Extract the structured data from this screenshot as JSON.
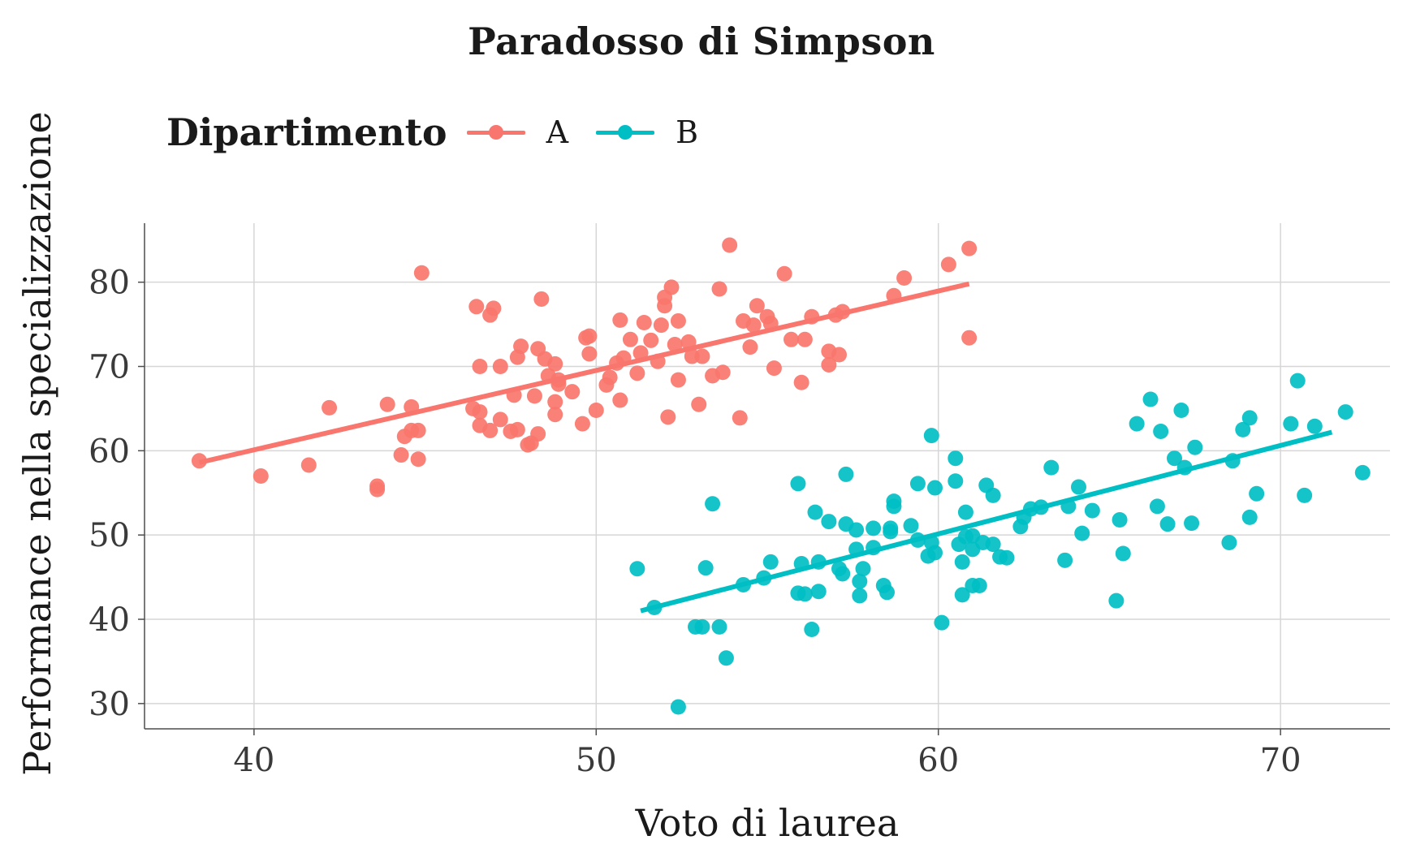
{
  "chart_data": {
    "type": "scatter",
    "title": "Paradosso di Simpson",
    "xlabel": "Voto di laurea",
    "ylabel": "Performance nella specializzazione",
    "xlim": [
      36.8,
      73.2
    ],
    "ylim": [
      27,
      87
    ],
    "xticks": [
      40,
      50,
      60,
      70
    ],
    "yticks": [
      30,
      40,
      50,
      60,
      70,
      80
    ],
    "grid": true,
    "legend": {
      "title": "Dipartimento",
      "placement": "top-left",
      "entries": [
        "A",
        "B"
      ]
    },
    "series": [
      {
        "name": "A",
        "color": "#f8766d",
        "fit_line": {
          "x": [
            38.4,
            60.9
          ],
          "y": [
            58.6,
            79.8
          ]
        },
        "points": [
          [
            38.4,
            58.8
          ],
          [
            40.2,
            57.0
          ],
          [
            41.6,
            58.3
          ],
          [
            42.2,
            65.1
          ],
          [
            43.6,
            55.8
          ],
          [
            43.6,
            55.4
          ],
          [
            43.9,
            65.5
          ],
          [
            44.3,
            59.5
          ],
          [
            44.4,
            61.7
          ],
          [
            44.6,
            62.4
          ],
          [
            44.6,
            65.2
          ],
          [
            44.8,
            62.4
          ],
          [
            44.8,
            59.0
          ],
          [
            44.9,
            81.1
          ],
          [
            46.4,
            65.0
          ],
          [
            46.5,
            77.1
          ],
          [
            46.6,
            70.0
          ],
          [
            46.6,
            63.0
          ],
          [
            46.6,
            64.6
          ],
          [
            46.9,
            62.4
          ],
          [
            46.9,
            76.1
          ],
          [
            47.0,
            76.9
          ],
          [
            47.2,
            63.7
          ],
          [
            47.2,
            70.0
          ],
          [
            47.5,
            62.3
          ],
          [
            47.6,
            66.6
          ],
          [
            47.7,
            71.1
          ],
          [
            47.7,
            62.5
          ],
          [
            47.8,
            72.4
          ],
          [
            48.0,
            60.7
          ],
          [
            48.1,
            60.9
          ],
          [
            48.2,
            66.5
          ],
          [
            48.3,
            62.0
          ],
          [
            48.3,
            72.1
          ],
          [
            48.4,
            78.0
          ],
          [
            48.5,
            70.9
          ],
          [
            48.6,
            68.9
          ],
          [
            48.8,
            65.8
          ],
          [
            48.8,
            64.3
          ],
          [
            48.8,
            70.3
          ],
          [
            48.9,
            68.4
          ],
          [
            48.9,
            67.9
          ],
          [
            49.3,
            67.0
          ],
          [
            49.6,
            63.2
          ],
          [
            49.7,
            73.4
          ],
          [
            49.8,
            73.6
          ],
          [
            49.8,
            71.5
          ],
          [
            50.0,
            64.8
          ],
          [
            50.3,
            67.8
          ],
          [
            50.4,
            68.7
          ],
          [
            50.6,
            70.4
          ],
          [
            50.7,
            75.5
          ],
          [
            50.7,
            66.0
          ],
          [
            50.8,
            71.0
          ],
          [
            51.0,
            73.2
          ],
          [
            51.2,
            69.2
          ],
          [
            51.3,
            71.6
          ],
          [
            51.4,
            75.2
          ],
          [
            51.6,
            73.1
          ],
          [
            51.8,
            70.6
          ],
          [
            51.9,
            74.9
          ],
          [
            52.0,
            77.2
          ],
          [
            52.0,
            78.2
          ],
          [
            52.1,
            64.0
          ],
          [
            52.2,
            79.4
          ],
          [
            52.3,
            72.6
          ],
          [
            52.4,
            75.4
          ],
          [
            52.4,
            68.4
          ],
          [
            52.7,
            72.9
          ],
          [
            52.8,
            71.2
          ],
          [
            53.0,
            65.5
          ],
          [
            53.1,
            71.2
          ],
          [
            53.4,
            68.9
          ],
          [
            53.6,
            79.2
          ],
          [
            53.7,
            69.3
          ],
          [
            53.9,
            84.4
          ],
          [
            54.2,
            63.9
          ],
          [
            54.3,
            75.4
          ],
          [
            54.5,
            72.3
          ],
          [
            54.6,
            74.9
          ],
          [
            54.7,
            77.2
          ],
          [
            55.0,
            75.9
          ],
          [
            55.1,
            75.1
          ],
          [
            55.2,
            69.8
          ],
          [
            55.5,
            81.0
          ],
          [
            55.7,
            73.2
          ],
          [
            56.1,
            73.2
          ],
          [
            56.0,
            68.1
          ],
          [
            56.3,
            75.9
          ],
          [
            56.8,
            70.2
          ],
          [
            56.8,
            71.8
          ],
          [
            57.0,
            76.1
          ],
          [
            57.1,
            71.4
          ],
          [
            57.2,
            76.5
          ],
          [
            58.7,
            78.4
          ],
          [
            59.0,
            80.5
          ],
          [
            60.3,
            82.1
          ],
          [
            60.9,
            73.4
          ],
          [
            60.9,
            84.0
          ]
        ]
      },
      {
        "name": "B",
        "color": "#00bfc4",
        "fit_line": {
          "x": [
            51.3,
            71.5
          ],
          "y": [
            41.0,
            62.2
          ]
        },
        "points": [
          [
            51.2,
            46.0
          ],
          [
            51.7,
            41.4
          ],
          [
            52.4,
            29.6
          ],
          [
            52.9,
            39.1
          ],
          [
            53.1,
            39.1
          ],
          [
            53.2,
            46.1
          ],
          [
            53.4,
            53.7
          ],
          [
            53.6,
            39.1
          ],
          [
            53.8,
            35.4
          ],
          [
            54.3,
            44.1
          ],
          [
            54.9,
            44.9
          ],
          [
            55.1,
            46.8
          ],
          [
            55.9,
            56.1
          ],
          [
            55.9,
            43.1
          ],
          [
            56.0,
            46.6
          ],
          [
            56.1,
            43.0
          ],
          [
            56.3,
            38.8
          ],
          [
            56.4,
            52.7
          ],
          [
            56.5,
            46.8
          ],
          [
            56.5,
            43.3
          ],
          [
            56.8,
            51.6
          ],
          [
            57.1,
            46.0
          ],
          [
            57.2,
            45.4
          ],
          [
            57.3,
            51.3
          ],
          [
            57.3,
            57.2
          ],
          [
            57.6,
            50.6
          ],
          [
            57.6,
            48.3
          ],
          [
            57.7,
            42.8
          ],
          [
            57.7,
            44.5
          ],
          [
            57.8,
            46.0
          ],
          [
            58.1,
            50.8
          ],
          [
            58.1,
            48.5
          ],
          [
            58.4,
            44.0
          ],
          [
            58.5,
            43.2
          ],
          [
            58.6,
            50.8
          ],
          [
            58.6,
            50.4
          ],
          [
            58.7,
            54.0
          ],
          [
            58.7,
            53.4
          ],
          [
            59.2,
            51.1
          ],
          [
            59.4,
            49.4
          ],
          [
            59.4,
            56.1
          ],
          [
            59.7,
            47.5
          ],
          [
            59.8,
            61.8
          ],
          [
            59.8,
            49.1
          ],
          [
            59.9,
            47.9
          ],
          [
            59.9,
            55.6
          ],
          [
            60.1,
            39.6
          ],
          [
            60.5,
            56.4
          ],
          [
            60.5,
            59.1
          ],
          [
            60.6,
            48.9
          ],
          [
            60.7,
            46.8
          ],
          [
            60.7,
            42.9
          ],
          [
            60.8,
            49.8
          ],
          [
            60.8,
            52.7
          ],
          [
            61.0,
            49.9
          ],
          [
            61.0,
            44.0
          ],
          [
            61.0,
            48.3
          ],
          [
            61.2,
            44.0
          ],
          [
            61.3,
            49.1
          ],
          [
            61.4,
            55.9
          ],
          [
            61.6,
            54.7
          ],
          [
            61.6,
            48.9
          ],
          [
            61.8,
            47.4
          ],
          [
            62.0,
            47.3
          ],
          [
            62.4,
            51.0
          ],
          [
            62.5,
            52.1
          ],
          [
            62.7,
            53.1
          ],
          [
            63.0,
            53.3
          ],
          [
            63.3,
            58.0
          ],
          [
            63.7,
            47.0
          ],
          [
            63.8,
            53.4
          ],
          [
            64.1,
            55.7
          ],
          [
            64.2,
            50.2
          ],
          [
            64.5,
            52.9
          ],
          [
            65.2,
            42.2
          ],
          [
            65.3,
            51.8
          ],
          [
            65.4,
            47.8
          ],
          [
            65.8,
            63.2
          ],
          [
            66.2,
            66.1
          ],
          [
            66.4,
            53.4
          ],
          [
            66.5,
            62.3
          ],
          [
            66.7,
            51.3
          ],
          [
            66.9,
            59.1
          ],
          [
            67.1,
            64.8
          ],
          [
            67.2,
            58.0
          ],
          [
            67.4,
            51.4
          ],
          [
            67.5,
            60.4
          ],
          [
            68.5,
            49.1
          ],
          [
            68.6,
            58.8
          ],
          [
            68.9,
            62.5
          ],
          [
            69.1,
            63.9
          ],
          [
            69.1,
            52.1
          ],
          [
            69.3,
            54.9
          ],
          [
            70.3,
            63.2
          ],
          [
            70.5,
            68.3
          ],
          [
            70.7,
            54.7
          ],
          [
            71.0,
            62.9
          ],
          [
            71.9,
            64.6
          ],
          [
            72.4,
            57.4
          ]
        ]
      }
    ]
  }
}
